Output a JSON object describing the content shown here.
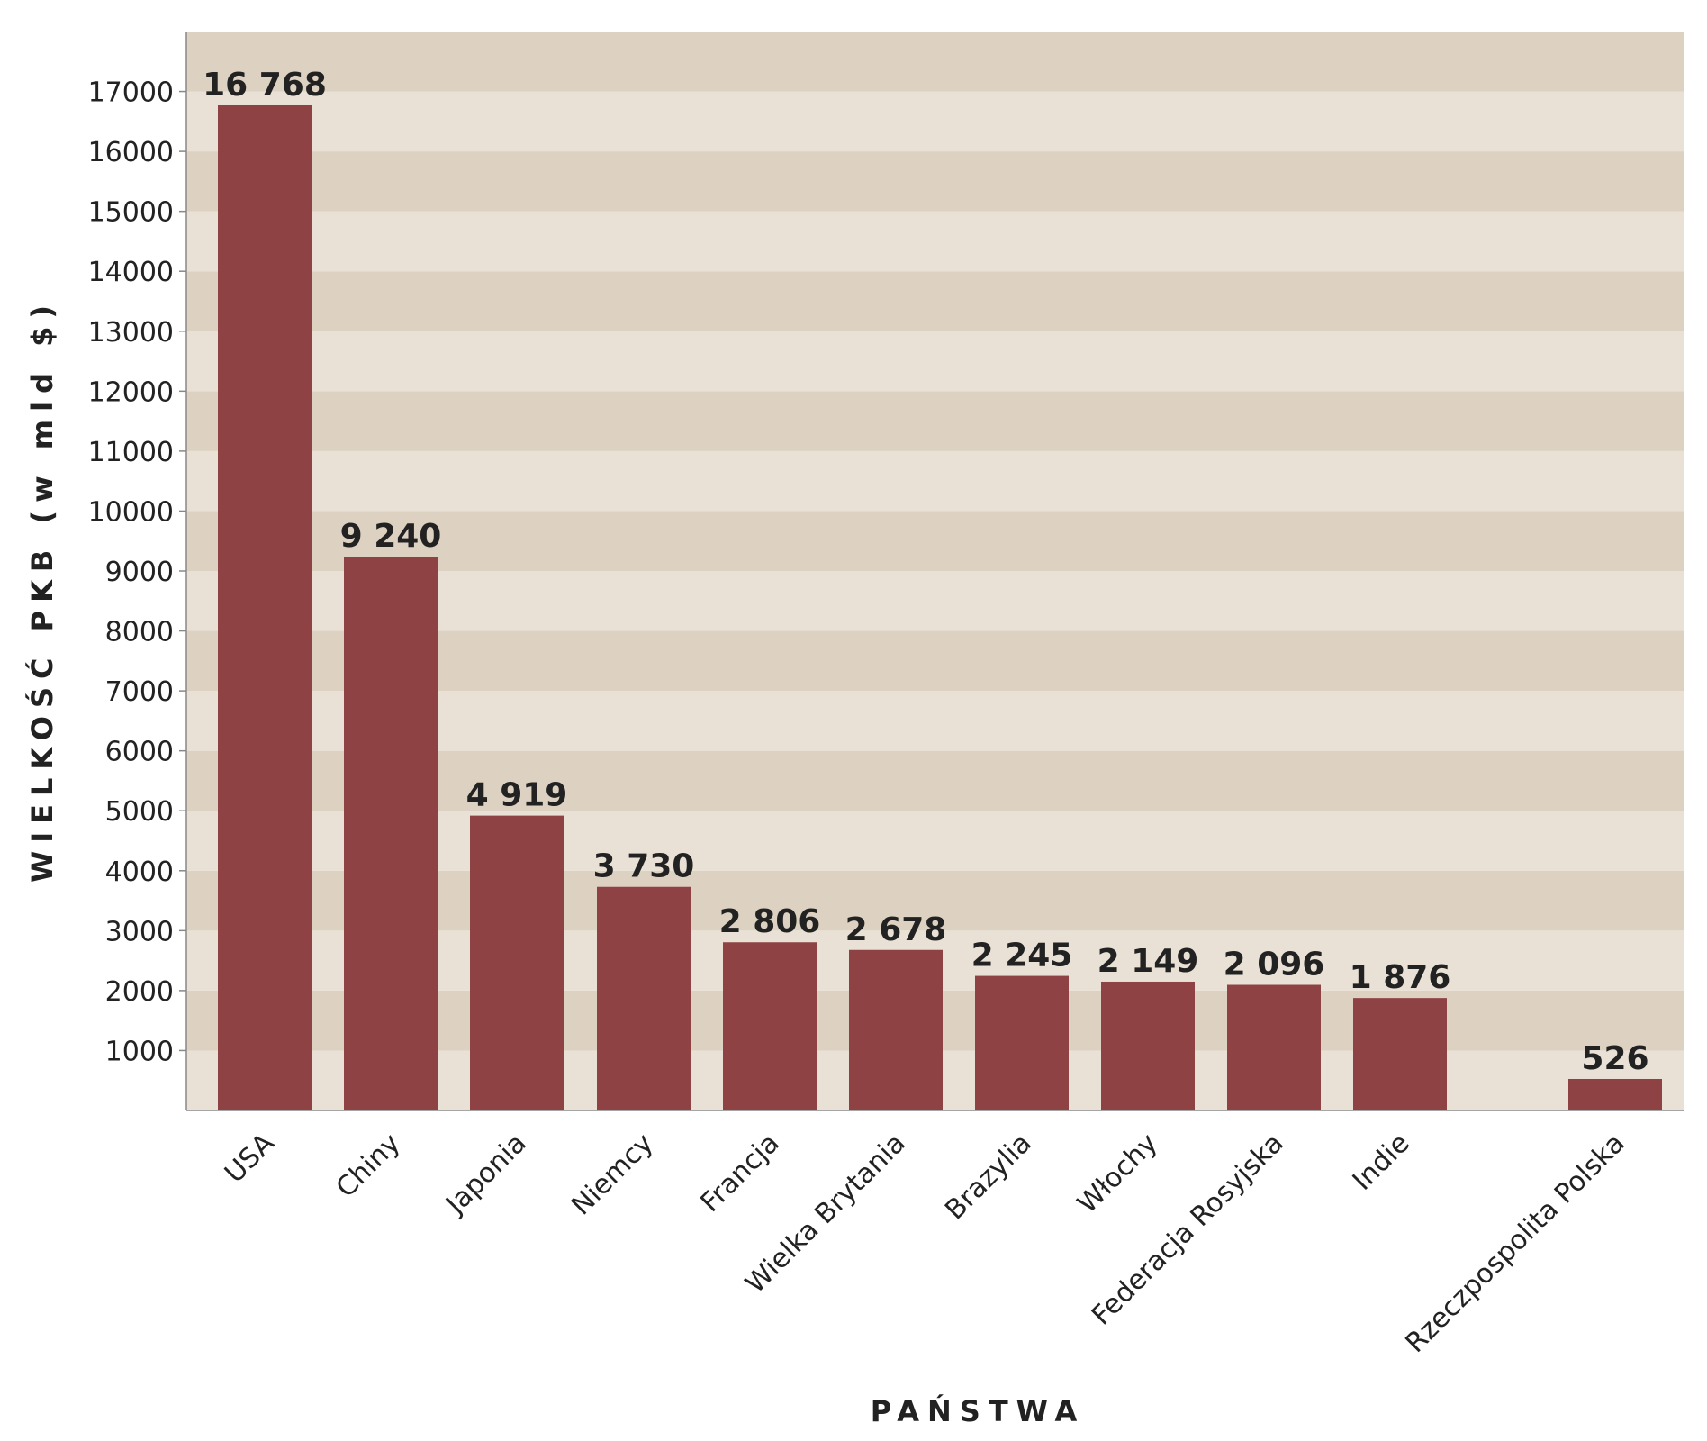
{
  "chart_data": {
    "type": "bar",
    "categories": [
      "USA",
      "Chiny",
      "Japonia",
      "Niemcy",
      "Francja",
      "Wielka Brytania",
      "Brazylia",
      "Włochy",
      "Federacja Rosyjska",
      "Indie",
      "Rzeczpospolita Polska"
    ],
    "values": [
      16768,
      9240,
      4919,
      3730,
      2806,
      2678,
      2245,
      2149,
      2096,
      1876,
      526
    ],
    "value_labels": [
      "16 768",
      "9 240",
      "4 919",
      "3 730",
      "2 806",
      "2 678",
      "2 245",
      "2 149",
      "2 096",
      "1 876",
      "526"
    ],
    "xlabel": "PAŃSTWA",
    "ylabel": "WIELKOŚĆ PKB (w mld $)",
    "ylim": [
      0,
      18000
    ],
    "yticks": [
      1000,
      2000,
      3000,
      4000,
      5000,
      6000,
      7000,
      8000,
      9000,
      10000,
      11000,
      12000,
      13000,
      14000,
      15000,
      16000,
      17000
    ],
    "ytick_labels": [
      "1000",
      "2000",
      "3000",
      "4000",
      "5000",
      "6000",
      "7000",
      "8000",
      "9000",
      "10000",
      "11000",
      "12000",
      "13000",
      "14000",
      "15000",
      "16000",
      "17000"
    ],
    "grid": "alternating horizontal bands",
    "colors": {
      "bar": "#8e4244",
      "band_dark": "#ddd1c1",
      "band_light": "#e9e1d5",
      "axis": "#888888"
    }
  }
}
